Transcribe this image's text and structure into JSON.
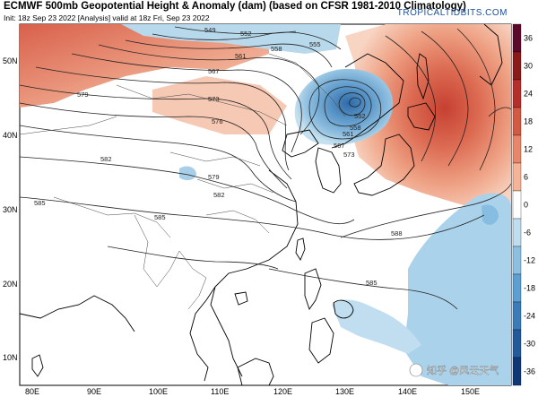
{
  "header": {
    "title": "ECMWF 500mb Geopotential Height & Anomaly (dam) (based on CFSR 1981-2010 Climatology)",
    "subtitle": "Init: 18z Sep 23 2022   [Analysis]   valid at 18z Fri, Sep 23 2022",
    "credit": "TROPICALTIDBITS.COM"
  },
  "map": {
    "lat_labels": [
      "50N",
      "40N",
      "30N",
      "20N",
      "10N"
    ],
    "lon_labels": [
      "80E",
      "90E",
      "100E",
      "110E",
      "120E",
      "130E",
      "140E",
      "150E"
    ],
    "contour_labels": [
      "549",
      "552",
      "555",
      "558",
      "561",
      "567",
      "573",
      "576",
      "579",
      "582",
      "585",
      "588",
      "585",
      "579",
      "582",
      "585",
      "573",
      "567",
      "561",
      "558",
      "552"
    ],
    "watermark": "知乎 @风云天气"
  },
  "colorbar": {
    "ticks": [
      "36",
      "30",
      "24",
      "18",
      "12",
      "6",
      "0",
      "-6",
      "-12",
      "-18",
      "-24",
      "-30",
      "-36"
    ],
    "colors": [
      "#5c0a2a",
      "#8b1a1a",
      "#b5302b",
      "#d25a43",
      "#e7866a",
      "#f3b497",
      "#ffffff",
      "#c0ddee",
      "#8dbfe0",
      "#5c9fd0",
      "#3b7cb8",
      "#235a9a",
      "#0f3875"
    ]
  }
}
